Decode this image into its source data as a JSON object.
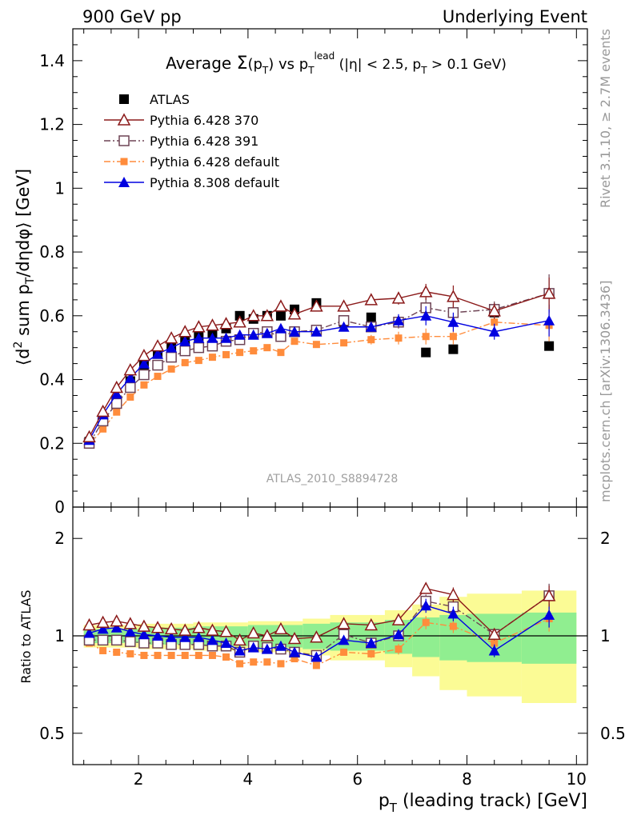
{
  "header": {
    "left": "900 GeV pp",
    "right": "Underlying Event"
  },
  "side_labels": {
    "rivet": "Rivet 3.1.10, ≥ 2.7M events",
    "mcplots": "mcplots.cern.ch [arXiv:1306.3436]"
  },
  "colors": {
    "ATLAS": "#000000",
    "Pythia 6.428 370": "#8b1a1a",
    "Pythia 6.428 391": "#6e4455",
    "Pythia 6.428 default": "#ff8c3c",
    "Pythia 8.308 default": "#0000e0",
    "band_inner": "#90ee90",
    "band_outer": "#fbfb95"
  },
  "chart_data": {
    "type": "line",
    "title_parts": {
      "prefix": "Average ",
      "sigma": "Σ",
      "arg_open": "(p",
      "arg_sub": "T",
      "arg_close": ")",
      "vs": " vs p",
      "vs_sub": "T",
      "vs_sup": "lead",
      "cuts_a": " (|η| < 2.5, p",
      "cuts_sub": "T",
      "cuts_b": " > 0.1 GeV)"
    },
    "watermark": "ATLAS_2010_S8894728",
    "xlabel_parts": {
      "a": "p",
      "sub": "T",
      "b": " (leading track) [GeV]"
    },
    "ylabel_parts": {
      "a": "⟨d",
      "sup": "2",
      "b": " sum p",
      "sub": "T",
      "c": "/dηdφ⟩ [GeV]"
    },
    "ratio_ylabel": "Ratio to ATLAS",
    "xlim": [
      0.8,
      10.2
    ],
    "ylim": [
      0,
      1.5
    ],
    "ratio_ylim": [
      0.4,
      2.5
    ],
    "ratio_log_scale": true,
    "x_ticks": [
      2,
      4,
      6,
      8,
      10
    ],
    "y_ticks": [
      0,
      0.2,
      0.4,
      0.6,
      0.8,
      1,
      1.2,
      1.4
    ],
    "y_tick_labels": [
      "0",
      "0.2",
      "0.4",
      "0.6",
      "0.8",
      "1",
      "1.2",
      "1.4"
    ],
    "ratio_ticks": [
      0.5,
      1,
      2
    ],
    "ratio_tick_labels": [
      "0.5",
      "1",
      "2"
    ],
    "legend_position": "top-left",
    "x": [
      1.1,
      1.35,
      1.6,
      1.85,
      2.1,
      2.35,
      2.6,
      2.85,
      3.1,
      3.35,
      3.6,
      3.85,
      4.1,
      4.35,
      4.6,
      4.85,
      5.25,
      5.75,
      6.25,
      6.75,
      7.25,
      7.75,
      8.5,
      9.5
    ],
    "series": [
      {
        "name": "ATLAS",
        "marker": "filled-square",
        "line": "none",
        "values": [
          0.205,
          0.275,
          0.335,
          0.395,
          0.445,
          0.48,
          0.505,
          0.525,
          0.535,
          0.545,
          0.56,
          0.6,
          0.59,
          0.6,
          0.6,
          0.62,
          0.64,
          0.58,
          0.595,
          0.58,
          0.485,
          0.495,
          0.61,
          0.505
        ],
        "ratio": [
          1,
          1,
          1,
          1,
          1,
          1,
          1,
          1,
          1,
          1,
          1,
          1,
          1,
          1,
          1,
          1,
          1,
          1,
          1,
          1,
          1,
          1,
          1,
          1
        ]
      },
      {
        "name": "Pythia 6.428 370",
        "marker": "open-triangle",
        "line": "solid",
        "values": [
          0.22,
          0.3,
          0.375,
          0.43,
          0.475,
          0.505,
          0.53,
          0.55,
          0.565,
          0.57,
          0.575,
          0.58,
          0.6,
          0.6,
          0.63,
          0.605,
          0.63,
          0.63,
          0.65,
          0.655,
          0.675,
          0.66,
          0.615,
          0.67
        ],
        "ratio": [
          1.08,
          1.1,
          1.11,
          1.09,
          1.07,
          1.06,
          1.05,
          1.04,
          1.06,
          1.04,
          1.03,
          0.97,
          1.02,
          1.0,
          1.05,
          0.98,
          0.99,
          1.09,
          1.08,
          1.12,
          1.4,
          1.34,
          1.01,
          1.33
        ]
      },
      {
        "name": "Pythia 6.428 391",
        "marker": "open-square",
        "line": "dash-dot",
        "values": [
          0.2,
          0.27,
          0.325,
          0.375,
          0.415,
          0.445,
          0.47,
          0.49,
          0.5,
          0.505,
          0.52,
          0.525,
          0.545,
          0.55,
          0.535,
          0.55,
          0.555,
          0.585,
          0.565,
          0.58,
          0.625,
          0.61,
          0.62,
          0.67
        ],
        "ratio": [
          0.97,
          0.97,
          0.97,
          0.96,
          0.95,
          0.95,
          0.94,
          0.94,
          0.94,
          0.93,
          0.93,
          0.89,
          0.93,
          0.92,
          0.91,
          0.89,
          0.87,
          1.01,
          0.95,
          1.0,
          1.28,
          1.23,
          1.01,
          1.33
        ]
      },
      {
        "name": "Pythia 6.428 default",
        "marker": "filled-small-square",
        "line": "dash-dot",
        "values": [
          0.195,
          0.245,
          0.298,
          0.345,
          0.383,
          0.41,
          0.433,
          0.453,
          0.46,
          0.47,
          0.478,
          0.485,
          0.49,
          0.5,
          0.485,
          0.52,
          0.51,
          0.515,
          0.525,
          0.53,
          0.535,
          0.535,
          0.58,
          0.57
        ],
        "ratio": [
          0.95,
          0.9,
          0.89,
          0.88,
          0.87,
          0.87,
          0.87,
          0.87,
          0.87,
          0.87,
          0.86,
          0.82,
          0.83,
          0.83,
          0.82,
          0.85,
          0.81,
          0.89,
          0.88,
          0.91,
          1.1,
          1.07,
          0.95,
          1.13
        ]
      },
      {
        "name": "Pythia 8.308 default",
        "marker": "filled-triangle",
        "line": "solid",
        "values": [
          0.21,
          0.29,
          0.355,
          0.405,
          0.45,
          0.48,
          0.5,
          0.52,
          0.53,
          0.53,
          0.53,
          0.54,
          0.54,
          0.545,
          0.56,
          0.55,
          0.55,
          0.565,
          0.565,
          0.585,
          0.6,
          0.58,
          0.55,
          0.585
        ],
        "ratio": [
          1.02,
          1.05,
          1.06,
          1.03,
          1.01,
          1.0,
          0.99,
          0.99,
          0.99,
          0.97,
          0.95,
          0.9,
          0.92,
          0.91,
          0.93,
          0.89,
          0.86,
          0.97,
          0.95,
          1.01,
          1.24,
          1.17,
          0.9,
          1.16
        ]
      }
    ],
    "error_bars": {
      "Pythia 6.428 370": [
        0,
        0,
        0,
        0,
        0,
        0,
        0,
        0,
        0,
        0,
        0,
        0,
        0,
        0,
        0,
        0,
        0,
        0,
        0.015,
        0.02,
        0.025,
        0.035,
        0.025,
        0.05
      ],
      "Pythia 6.428 391": [
        0,
        0,
        0,
        0,
        0,
        0,
        0,
        0,
        0,
        0,
        0,
        0,
        0,
        0,
        0,
        0,
        0,
        0,
        0.015,
        0.02,
        0.03,
        0.03,
        0.025,
        0.06
      ],
      "Pythia 6.428 default": [
        0,
        0,
        0,
        0,
        0,
        0,
        0,
        0,
        0,
        0,
        0,
        0,
        0,
        0,
        0,
        0,
        0,
        0,
        0.015,
        0.02,
        0.025,
        0.025,
        0.02,
        0.05
      ],
      "Pythia 8.308 default": [
        0,
        0,
        0,
        0,
        0,
        0,
        0,
        0,
        0,
        0,
        0,
        0,
        0,
        0,
        0,
        0,
        0,
        0,
        0.015,
        0.02,
        0.03,
        0.03,
        0.025,
        0.05
      ]
    },
    "ratio_band": {
      "edges": [
        1.0,
        1.5,
        2.0,
        3.0,
        4.0,
        5.0,
        5.5,
        6.5,
        7.0,
        7.5,
        8.0,
        9.0,
        10.0
      ],
      "inner": [
        0.05,
        0.05,
        0.06,
        0.07,
        0.08,
        0.09,
        0.1,
        0.12,
        0.14,
        0.16,
        0.17,
        0.18
      ],
      "outer": [
        0.08,
        0.08,
        0.09,
        0.1,
        0.11,
        0.13,
        0.16,
        0.2,
        0.25,
        0.32,
        0.35,
        0.38
      ]
    }
  }
}
